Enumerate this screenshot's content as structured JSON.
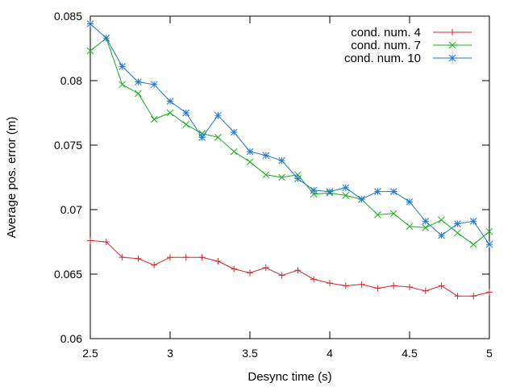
{
  "chart_data": {
    "type": "line",
    "title": "",
    "xlabel": "Desync time (s)",
    "ylabel": "Average pos. error (m)",
    "xlim": [
      2.5,
      5
    ],
    "ylim": [
      0.06,
      0.085
    ],
    "xticks": [
      2.5,
      3,
      3.5,
      4,
      4.5,
      5
    ],
    "xtick_labels": [
      "2.5",
      "3",
      "3.5",
      "4",
      "4.5",
      "5"
    ],
    "yticks": [
      0.06,
      0.065,
      0.07,
      0.075,
      0.08,
      0.085
    ],
    "ytick_labels": [
      "0.06",
      "0.065",
      "0.07",
      "0.075",
      "0.08",
      "0.085"
    ],
    "grid": false,
    "legend_position": "top-right",
    "x": [
      2.5,
      2.6,
      2.7,
      2.8,
      2.9,
      3.0,
      3.1,
      3.2,
      3.3,
      3.4,
      3.5,
      3.6,
      3.7,
      3.8,
      3.9,
      4.0,
      4.1,
      4.2,
      4.3,
      4.4,
      4.5,
      4.6,
      4.7,
      4.8,
      4.9,
      5.0
    ],
    "series": [
      {
        "name": "cond. num. 4",
        "color": "#d62728",
        "marker": "plus",
        "values": [
          0.0676,
          0.0675,
          0.0663,
          0.0662,
          0.0657,
          0.0663,
          0.0663,
          0.0663,
          0.066,
          0.0654,
          0.0651,
          0.0655,
          0.0649,
          0.0653,
          0.0646,
          0.0643,
          0.0641,
          0.0642,
          0.0639,
          0.0641,
          0.064,
          0.0637,
          0.0641,
          0.0633,
          0.0633,
          0.0636
        ]
      },
      {
        "name": "cond. num. 7",
        "color": "#1aae1a",
        "marker": "cross",
        "values": [
          0.0823,
          0.0833,
          0.0797,
          0.079,
          0.077,
          0.0775,
          0.0766,
          0.0759,
          0.0756,
          0.0745,
          0.0737,
          0.0727,
          0.0725,
          0.0727,
          0.0712,
          0.0713,
          0.0711,
          0.0708,
          0.0696,
          0.0697,
          0.0687,
          0.0686,
          0.0692,
          0.0682,
          0.0673,
          0.0683
        ]
      },
      {
        "name": "cond. num. 10",
        "color": "#1f77d4",
        "marker": "star",
        "values": [
          0.0844,
          0.0833,
          0.0811,
          0.0799,
          0.0797,
          0.0784,
          0.0775,
          0.0756,
          0.0773,
          0.076,
          0.0745,
          0.0742,
          0.0738,
          0.0724,
          0.0715,
          0.0714,
          0.0717,
          0.0708,
          0.0714,
          0.0714,
          0.0706,
          0.0691,
          0.068,
          0.0689,
          0.0691,
          0.0673
        ]
      }
    ]
  }
}
